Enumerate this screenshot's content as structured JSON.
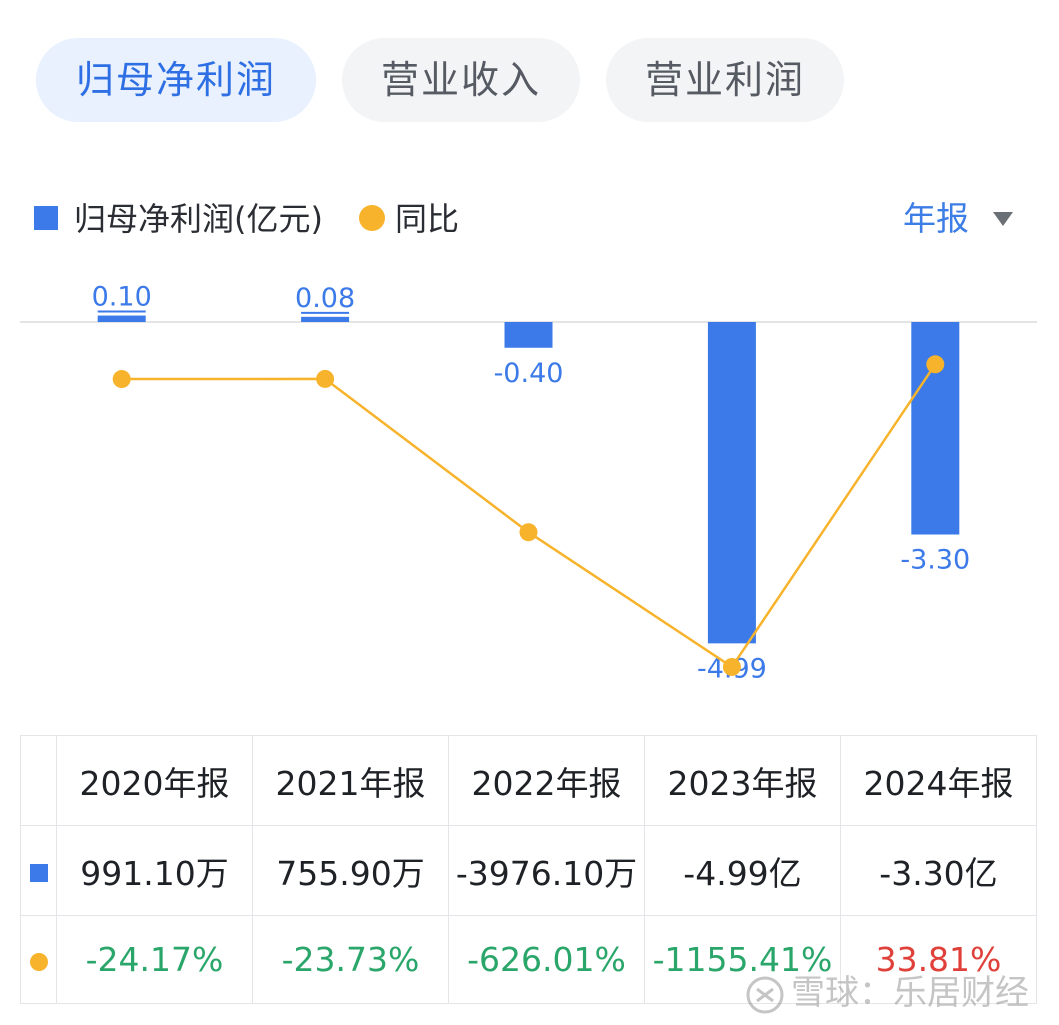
{
  "tabs": [
    {
      "label": "归母净利润",
      "active": true
    },
    {
      "label": "营业收入",
      "active": false
    },
    {
      "label": "营业利润",
      "active": false
    }
  ],
  "legend": {
    "bar_label": "归母净利润(亿元)",
    "line_label": "同比",
    "bar_color": "#3b7ae8",
    "line_color": "#f7b32b"
  },
  "period_selector": {
    "label": "年报",
    "icon": "caret-down-icon"
  },
  "chart_data": {
    "type": "bar",
    "categories": [
      "2020年报",
      "2021年报",
      "2022年报",
      "2023年报",
      "2024年报"
    ],
    "series": [
      {
        "name": "归母净利润(亿元)",
        "type": "bar",
        "values": [
          0.1,
          0.08,
          -0.4,
          -4.99,
          -3.3
        ],
        "labels": [
          "0.10",
          "0.08",
          "-0.40",
          "-4.99",
          "-3.30"
        ]
      },
      {
        "name": "同比",
        "type": "line",
        "values": [
          -24.17,
          -23.73,
          -626.01,
          -1155.41,
          33.81
        ]
      }
    ],
    "grid": false
  },
  "table": {
    "headers": [
      "2020年报",
      "2021年报",
      "2022年报",
      "2023年报",
      "2024年报"
    ],
    "profit_row": [
      "991.10万",
      "755.90万",
      "-3976.10万",
      "-4.99亿",
      "-3.30亿"
    ],
    "yoy_row": [
      "-24.17%",
      "-23.73%",
      "-626.01%",
      "-1155.41%",
      "33.81%"
    ],
    "negative_color": "#2aa66a",
    "positive_color": "#e0403a"
  },
  "watermark": {
    "text": "雪球：乐居财经"
  }
}
